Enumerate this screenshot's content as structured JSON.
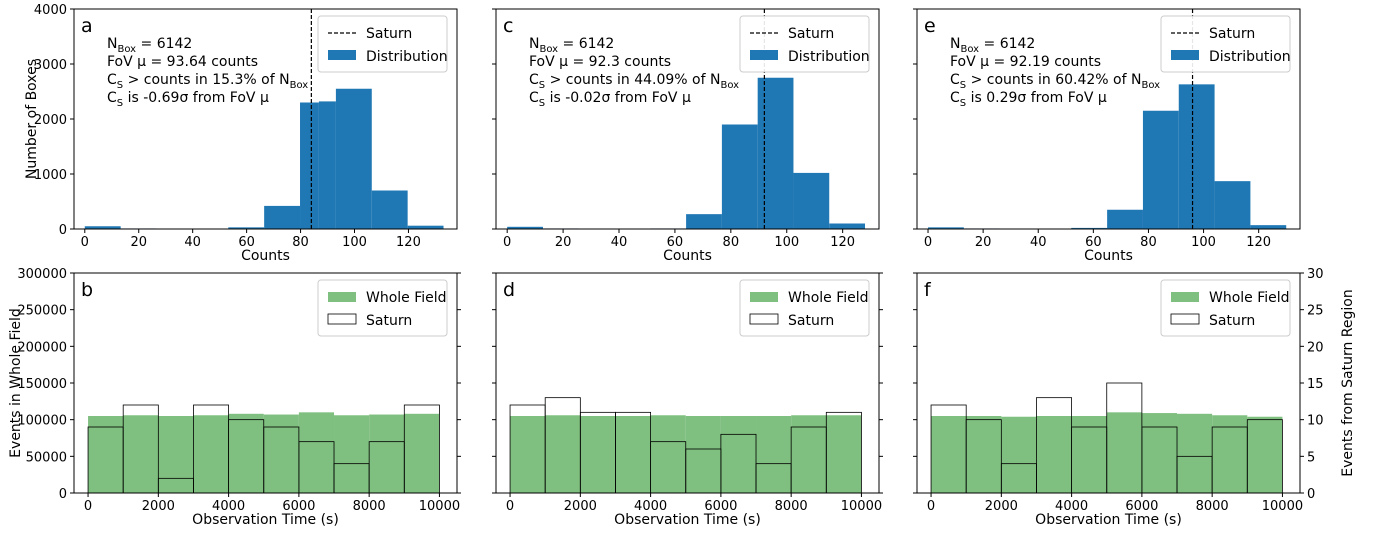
{
  "colors": {
    "distribution": "#1f77b4",
    "whole_field": "#7fbf7f",
    "saturn_outline": "#000000",
    "saturn_line": "#000000"
  },
  "chart_data": [
    {
      "panel": "a",
      "type": "bar",
      "bin_edges": [
        0,
        13.3,
        26.6,
        39.9,
        53.2,
        66.5,
        79.8,
        86.8,
        93.1,
        106.4,
        119.7,
        133
      ],
      "values": [
        50,
        10,
        5,
        5,
        30,
        420,
        2300,
        2320,
        2550,
        700,
        60
      ],
      "xlim": [
        -4,
        138
      ],
      "ylim": [
        0,
        4000
      ],
      "xticks": [
        0,
        20,
        40,
        60,
        80,
        100,
        120
      ],
      "yticks": [
        0,
        1000,
        2000,
        3000,
        4000
      ],
      "xlabel": "Counts",
      "ylabel": "Number of Boxes",
      "saturn_x": 84,
      "legend": [
        "Saturn",
        "Distribution"
      ],
      "annot": [
        {
          "main": "N",
          "sub": "Box",
          "rest": " = 6142"
        },
        {
          "text": "FoV μ = 93.64 counts"
        },
        {
          "main": "C",
          "sub": "S",
          "rest": " > counts in 15.3% of N",
          "sub2": "Box"
        },
        {
          "main": "C",
          "sub": "S",
          "rest": " is -0.69σ from FoV μ"
        }
      ]
    },
    {
      "panel": "c",
      "type": "bar",
      "bin_edges": [
        0,
        12.8,
        25.6,
        38.4,
        51.2,
        64,
        76.8,
        89.6,
        102.4,
        115.2,
        128
      ],
      "values": [
        40,
        10,
        5,
        5,
        10,
        270,
        1900,
        2750,
        1020,
        100
      ],
      "xlim": [
        -4,
        133
      ],
      "ylim": [
        0,
        4000
      ],
      "xticks": [
        0,
        20,
        40,
        60,
        80,
        100,
        120
      ],
      "yticks": [
        0,
        1000,
        2000,
        3000,
        4000
      ],
      "xlabel": "Counts",
      "ylabel": "",
      "saturn_x": 92,
      "legend": [
        "Saturn",
        "Distribution"
      ],
      "annot": [
        {
          "main": "N",
          "sub": "Box",
          "rest": " = 6142"
        },
        {
          "text": "FoV μ = 92.3 counts"
        },
        {
          "main": "C",
          "sub": "S",
          "rest": " > counts in 44.09% of N",
          "sub2": "Box"
        },
        {
          "main": "C",
          "sub": "S",
          "rest": " is -0.02σ from FoV μ"
        }
      ]
    },
    {
      "panel": "e",
      "type": "bar",
      "bin_edges": [
        0,
        13,
        26,
        39,
        52,
        65,
        78,
        91,
        104,
        117,
        130
      ],
      "values": [
        30,
        10,
        5,
        5,
        20,
        350,
        2150,
        2630,
        870,
        70
      ],
      "xlim": [
        -4,
        135
      ],
      "ylim": [
        0,
        4000
      ],
      "xticks": [
        0,
        20,
        40,
        60,
        80,
        100,
        120
      ],
      "yticks": [
        0,
        1000,
        2000,
        3000,
        4000
      ],
      "xlabel": "Counts",
      "ylabel": "",
      "saturn_x": 96,
      "legend": [
        "Saturn",
        "Distribution"
      ],
      "annot": [
        {
          "main": "N",
          "sub": "Box",
          "rest": " = 6142"
        },
        {
          "text": "FoV μ = 92.19 counts"
        },
        {
          "main": "C",
          "sub": "S",
          "rest": " > counts in 60.42% of N",
          "sub2": "Box"
        },
        {
          "main": "C",
          "sub": "S",
          "rest": " is 0.29σ from FoV μ"
        }
      ]
    },
    {
      "panel": "b",
      "type": "bar",
      "x": [
        0,
        1000,
        2000,
        3000,
        4000,
        5000,
        6000,
        7000,
        8000,
        9000,
        10000
      ],
      "whole_field": [
        105000,
        106000,
        105000,
        106000,
        108000,
        107000,
        110000,
        106000,
        107000,
        108000
      ],
      "saturn": [
        9,
        12,
        2,
        12,
        10,
        9,
        7,
        4,
        7,
        12
      ],
      "xlim": [
        -400,
        10500
      ],
      "ylim": [
        0,
        300000
      ],
      "ylim_right": [
        0,
        30
      ],
      "xticks": [
        0,
        2000,
        4000,
        6000,
        8000,
        10000
      ],
      "yticks": [
        0,
        50000,
        100000,
        150000,
        200000,
        250000,
        300000
      ],
      "xlabel": "Observation Time (s)",
      "ylabel": "Events in Whole Field",
      "ylabel_right": "",
      "legend": [
        "Whole Field",
        "Saturn"
      ]
    },
    {
      "panel": "d",
      "type": "bar",
      "x": [
        0,
        1000,
        2000,
        3000,
        4000,
        5000,
        6000,
        7000,
        8000,
        9000,
        10000
      ],
      "whole_field": [
        105000,
        106000,
        105000,
        105000,
        106000,
        105000,
        105000,
        105000,
        106000,
        106000
      ],
      "saturn": [
        12,
        13,
        11,
        11,
        7,
        6,
        8,
        4,
        9,
        11
      ],
      "xlim": [
        -400,
        10500
      ],
      "ylim": [
        0,
        300000
      ],
      "ylim_right": [
        0,
        30
      ],
      "xticks": [
        0,
        2000,
        4000,
        6000,
        8000,
        10000
      ],
      "yticks": [],
      "xlabel": "Observation Time (s)",
      "ylabel": "",
      "ylabel_right": "",
      "legend": [
        "Whole Field",
        "Saturn"
      ]
    },
    {
      "panel": "f",
      "type": "bar",
      "x": [
        0,
        1000,
        2000,
        3000,
        4000,
        5000,
        6000,
        7000,
        8000,
        9000,
        10000
      ],
      "whole_field": [
        105000,
        105000,
        104000,
        105000,
        105000,
        110000,
        109000,
        108000,
        106000,
        104000
      ],
      "saturn": [
        12,
        10,
        4,
        13,
        9,
        15,
        9,
        5,
        9,
        10
      ],
      "xlim": [
        -400,
        10500
      ],
      "ylim": [
        0,
        300000
      ],
      "ylim_right": [
        0,
        30
      ],
      "xticks": [
        0,
        2000,
        4000,
        6000,
        8000,
        10000
      ],
      "yticks": [],
      "yticks_right": [
        0,
        5,
        10,
        15,
        20,
        25,
        30
      ],
      "xlabel": "Observation Time (s)",
      "ylabel": "",
      "ylabel_right": "Events from Saturn Region",
      "legend": [
        "Whole Field",
        "Saturn"
      ]
    }
  ]
}
